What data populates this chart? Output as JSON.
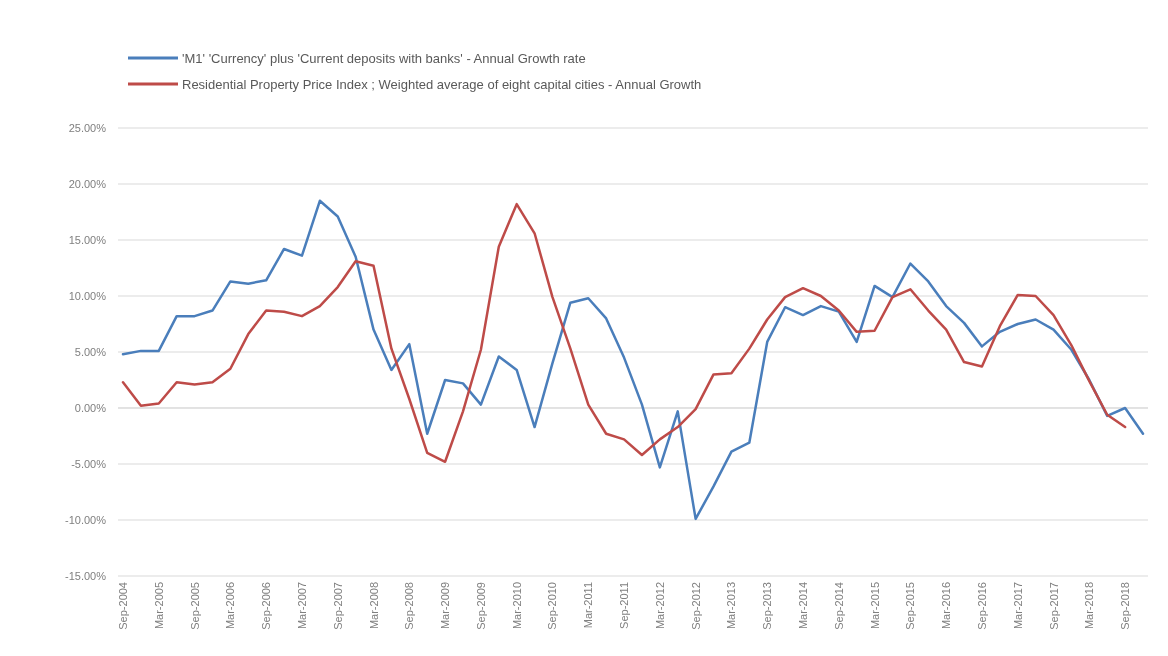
{
  "chart_data": {
    "type": "line",
    "categories": [
      "Sep-2004",
      null,
      "Mar-2005",
      null,
      "Sep-2005",
      null,
      "Mar-2006",
      null,
      "Sep-2006",
      null,
      "Mar-2007",
      null,
      "Sep-2007",
      null,
      "Mar-2008",
      null,
      "Sep-2008",
      null,
      "Mar-2009",
      null,
      "Sep-2009",
      null,
      "Mar-2010",
      null,
      "Sep-2010",
      null,
      "Mar-2011",
      null,
      "Sep-2011",
      null,
      "Mar-2012",
      null,
      "Sep-2012",
      null,
      "Mar-2013",
      null,
      "Sep-2013",
      null,
      "Mar-2014",
      null,
      "Sep-2014",
      null,
      "Mar-2015",
      null,
      "Sep-2015",
      null,
      "Mar-2016",
      null,
      "Sep-2016",
      null,
      "Mar-2017",
      null,
      "Sep-2017",
      null,
      "Mar-2018",
      null,
      "Sep-2018",
      null
    ],
    "series": [
      {
        "name": "'M1' 'Currency' plus 'Current deposits with banks' - Annual Growth rate",
        "color": "#4a7ebb",
        "values": [
          4.8,
          5.1,
          5.1,
          8.2,
          8.2,
          8.7,
          11.3,
          11.1,
          11.4,
          14.2,
          13.6,
          18.5,
          17.1,
          13.5,
          7.0,
          3.4,
          5.7,
          -2.3,
          2.5,
          2.2,
          0.3,
          4.6,
          3.4,
          -1.7,
          4.0,
          9.4,
          9.8,
          8.0,
          4.5,
          0.3,
          -5.3,
          -0.3,
          -9.9,
          -7.0,
          -3.9,
          -3.1,
          5.9,
          9.0,
          8.3,
          9.1,
          8.6,
          5.9,
          10.9,
          9.9,
          12.9,
          11.3,
          9.1,
          7.6,
          5.5,
          6.8,
          7.5,
          7.9,
          7.0,
          5.2,
          2.5,
          -0.7,
          0.0,
          -2.3
        ]
      },
      {
        "name": "Residential Property Price Index ;  Weighted average of eight capital cities - Annual Growth",
        "color": "#be4b48",
        "values": [
          2.3,
          0.2,
          0.4,
          2.3,
          2.1,
          2.3,
          3.5,
          6.6,
          8.7,
          8.6,
          8.2,
          9.1,
          10.8,
          13.1,
          12.7,
          5.3,
          0.8,
          -4.0,
          -4.8,
          -0.3,
          5.2,
          14.4,
          18.2,
          15.6,
          9.9,
          5.3,
          0.3,
          -2.3,
          -2.8,
          -4.2,
          -2.8,
          -1.7,
          -0.1,
          3.0,
          3.1,
          5.3,
          7.9,
          9.9,
          10.7,
          10.0,
          8.7,
          6.8,
          6.9,
          9.9,
          10.6,
          8.7,
          7.0,
          4.1,
          3.7,
          7.3,
          10.1,
          10.0,
          8.3,
          5.6,
          2.4,
          -0.6,
          -1.7,
          null
        ]
      }
    ],
    "ylim": [
      -15,
      25
    ],
    "yticks": [
      {
        "value": -15,
        "label": "-15.00%"
      },
      {
        "value": -10,
        "label": "-10.00%"
      },
      {
        "value": -5,
        "label": "-5.00%"
      },
      {
        "value": 0,
        "label": "0.00%"
      },
      {
        "value": 5,
        "label": "5.00%"
      },
      {
        "value": 10,
        "label": "10.00%"
      },
      {
        "value": 15,
        "label": "15.00%"
      },
      {
        "value": 20,
        "label": "20.00%"
      },
      {
        "value": 25,
        "label": "25.00%"
      }
    ],
    "grid": "y",
    "legend": "top left",
    "marker": "none",
    "line_style": "solid"
  }
}
